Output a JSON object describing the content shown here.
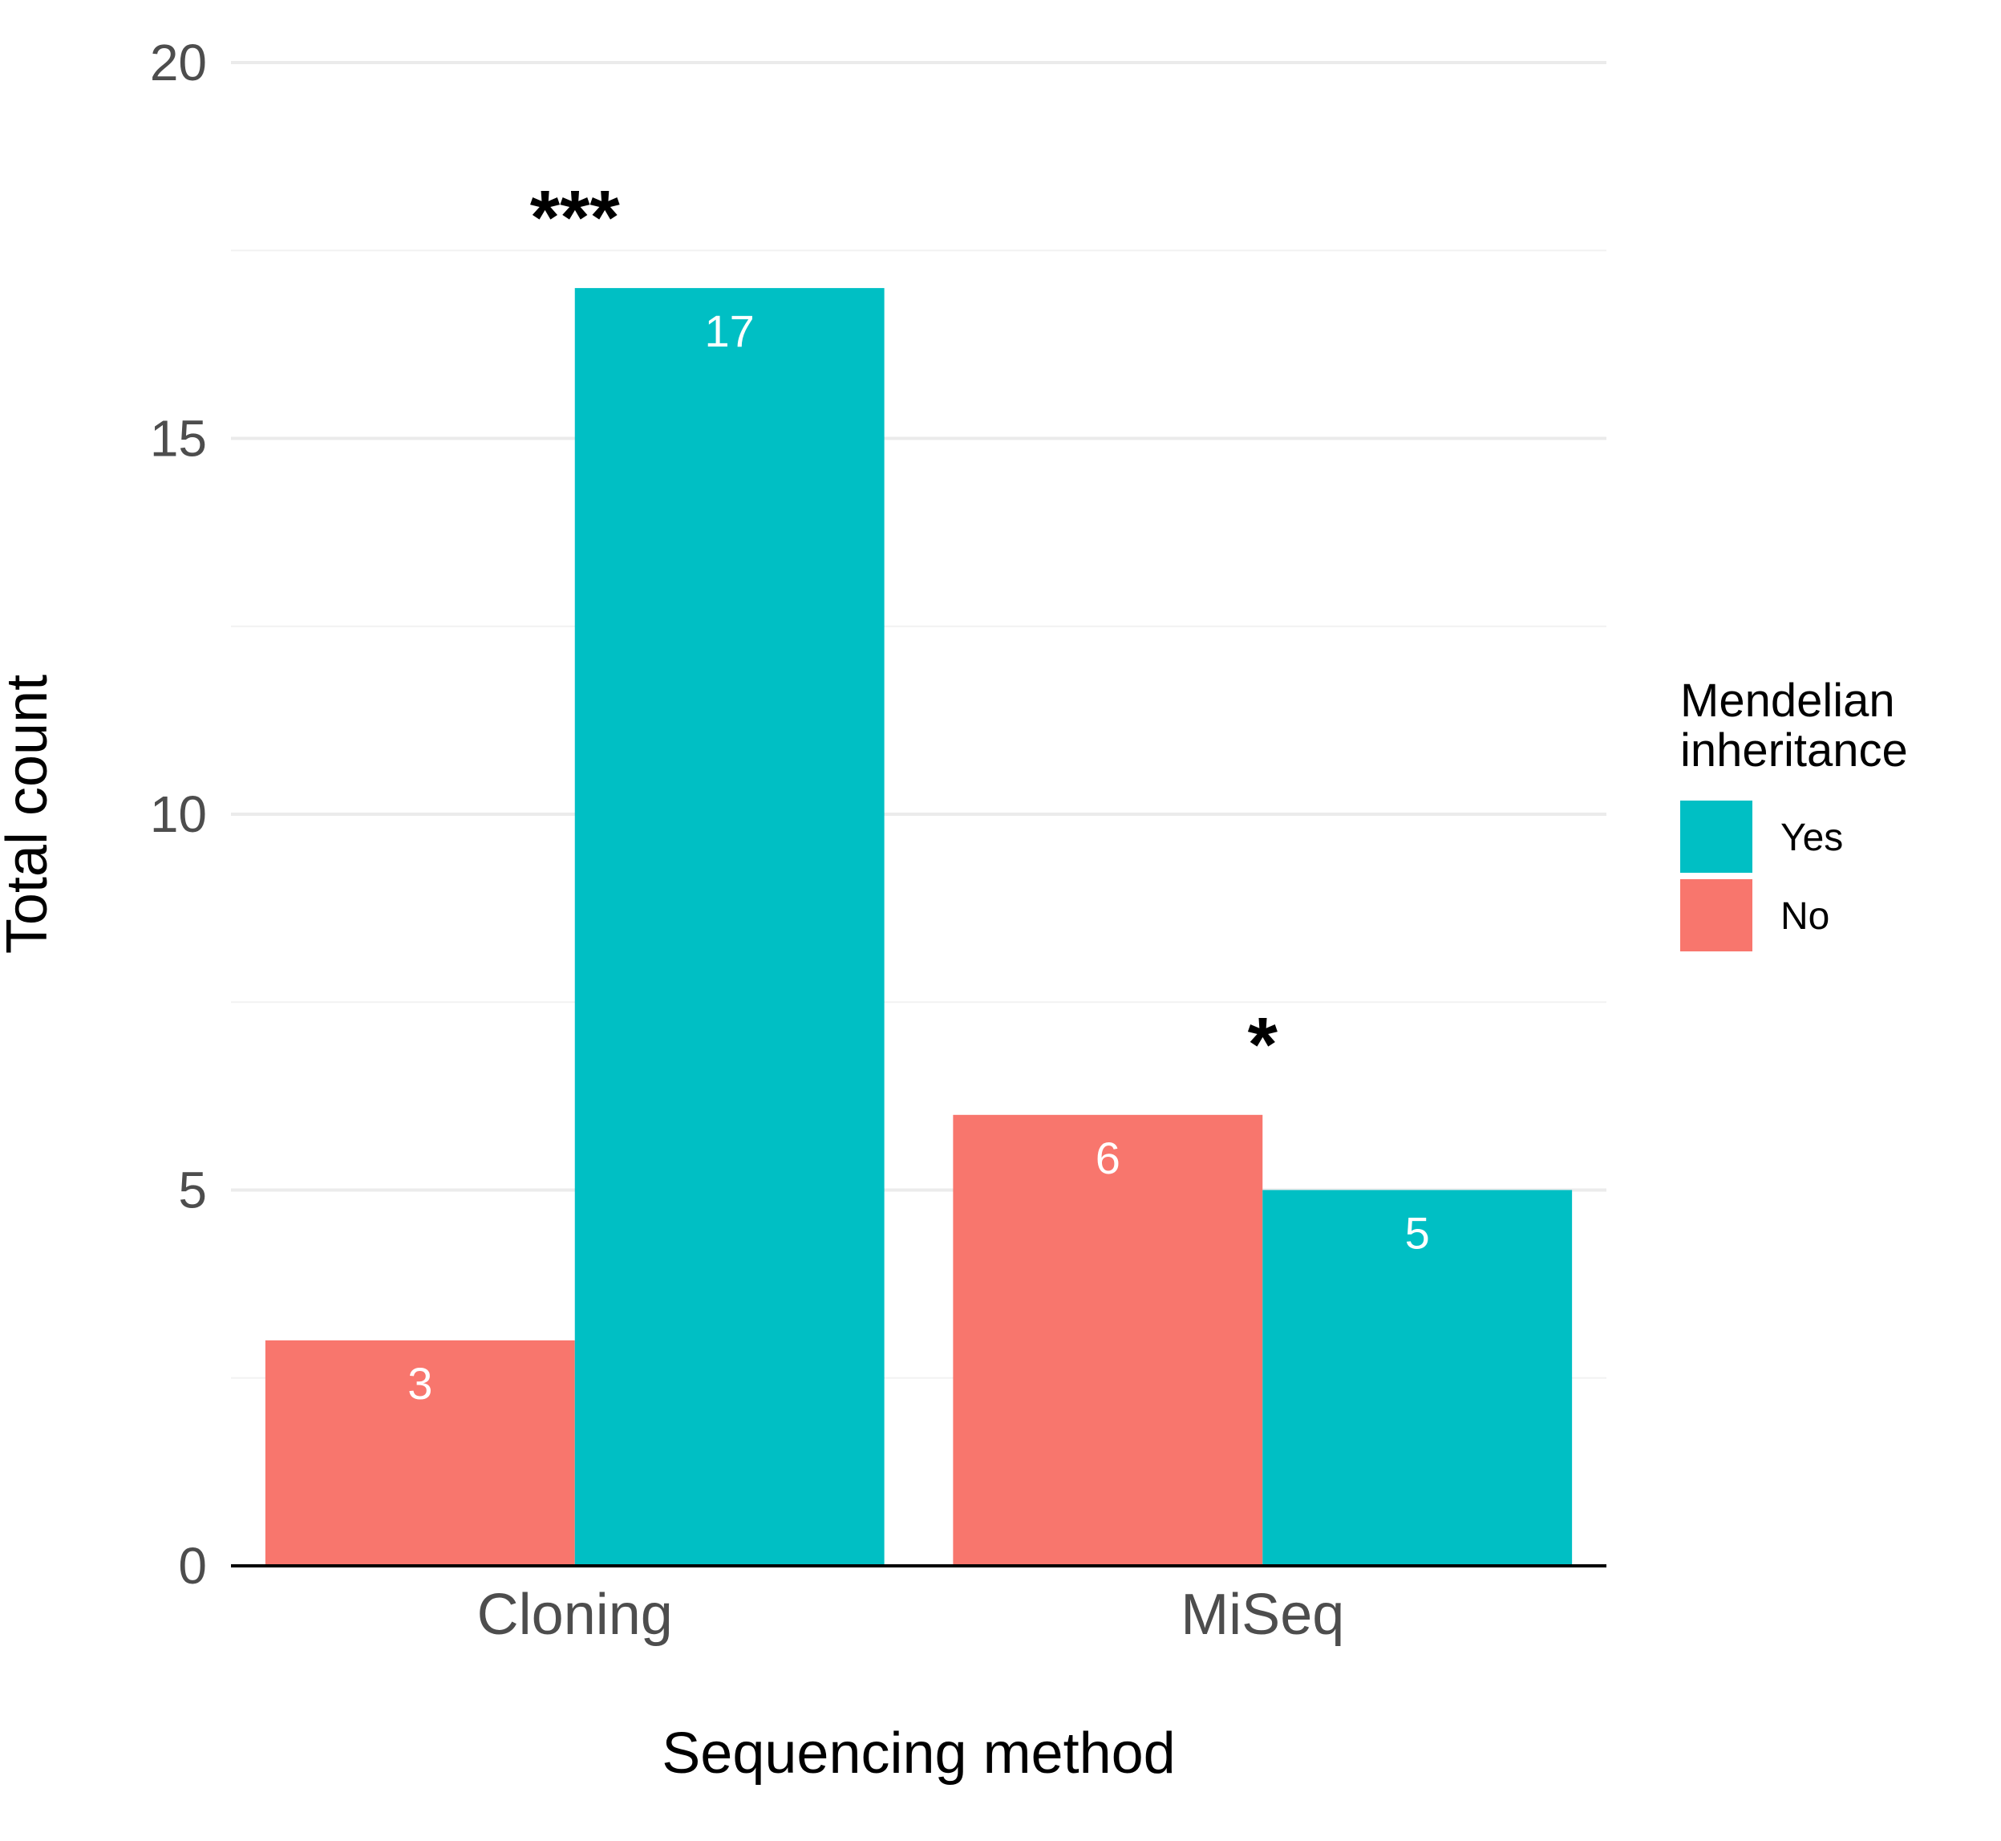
{
  "chart_data": {
    "type": "bar",
    "categories": [
      "Cloning",
      "MiSeq"
    ],
    "series": [
      {
        "name": "No",
        "color": "#F8766D",
        "values": [
          3,
          6
        ]
      },
      {
        "name": "Yes",
        "color": "#00BFC4",
        "values": [
          17,
          5
        ]
      }
    ],
    "bar_labels": {
      "No": [
        "3",
        "6"
      ],
      "Yes": [
        "17",
        "5"
      ]
    },
    "significance": [
      "***",
      "*"
    ],
    "xlabel": "Sequencing method",
    "ylabel": "Total count",
    "ylim": [
      0,
      20
    ],
    "yticks": [
      0,
      5,
      10,
      15,
      20
    ],
    "grid": true,
    "legend": {
      "title_line1": "Mendelian",
      "title_line2": "inheritance",
      "position": "right",
      "entries": [
        {
          "label": "Yes",
          "color": "#00BFC4"
        },
        {
          "label": "No",
          "color": "#F8766D"
        }
      ]
    }
  }
}
